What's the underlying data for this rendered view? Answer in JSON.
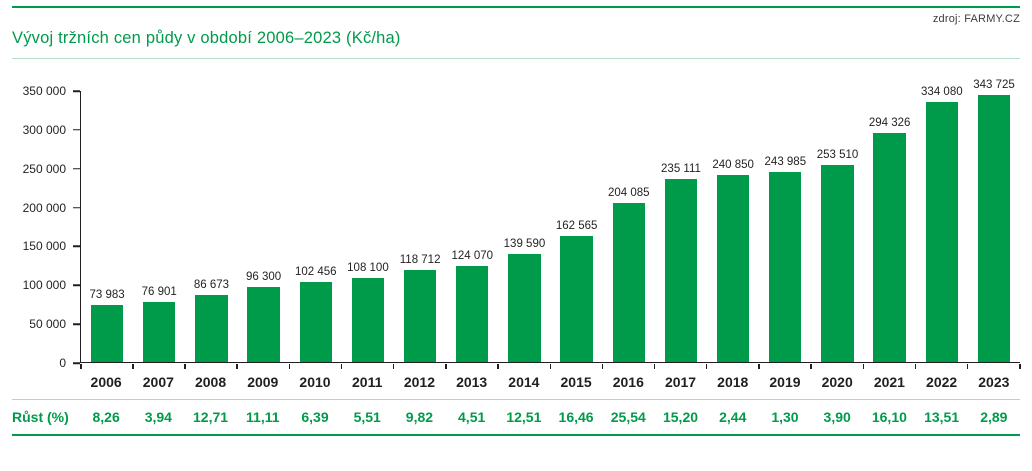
{
  "header": {
    "source": "zdroj: FARMY.CZ"
  },
  "chart_data": {
    "type": "bar",
    "title": "Vývoj tržních cen půdy v období 2006–2023 (Kč/ha)",
    "categories": [
      "2006",
      "2007",
      "2008",
      "2009",
      "2010",
      "2011",
      "2012",
      "2013",
      "2014",
      "2015",
      "2016",
      "2017",
      "2018",
      "2019",
      "2020",
      "2021",
      "2022",
      "2023"
    ],
    "values": [
      73983,
      76901,
      86673,
      96300,
      102456,
      108100,
      118712,
      124070,
      139590,
      162565,
      204085,
      235111,
      240850,
      243985,
      253510,
      294326,
      334080,
      343725
    ],
    "value_labels": [
      "73 983",
      "76 901",
      "86 673",
      "96 300",
      "102 456",
      "108 100",
      "118 712",
      "124 070",
      "139 590",
      "162 565",
      "204 085",
      "235 111",
      "240 850",
      "243 985",
      "253 510",
      "294 326",
      "334 080",
      "343 725"
    ],
    "xlabel": "",
    "ylabel": "",
    "ylim": [
      0,
      350000
    ],
    "yticks": {
      "values": [
        0,
        50000,
        100000,
        150000,
        200000,
        250000,
        300000,
        350000
      ],
      "labels": [
        "0",
        "50 000",
        "100 000",
        "150 000",
        "200 000",
        "250 000",
        "300 000",
        "350 000"
      ]
    },
    "grid": false,
    "legend": false,
    "bar_color": "#009b4a"
  },
  "growth_row": {
    "label": "Růst (%)",
    "values": [
      "8,26",
      "3,94",
      "12,71",
      "11,11",
      "6,39",
      "5,51",
      "9,82",
      "4,51",
      "12,51",
      "16,46",
      "25,54",
      "15,20",
      "2,44",
      "1,30",
      "3,90",
      "16,10",
      "13,51",
      "2,89"
    ]
  },
  "colors": {
    "accent_green": "#009b4a",
    "text_dark": "#231f20"
  }
}
